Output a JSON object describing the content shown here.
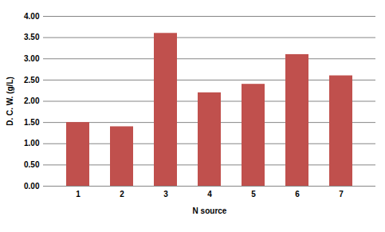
{
  "chart_data": {
    "type": "bar",
    "x_label": "N source",
    "y_label": "D. C. W. (g/L)",
    "categories": [
      "1",
      "2",
      "3",
      "4",
      "5",
      "6",
      "7"
    ],
    "values": [
      1.5,
      1.4,
      3.6,
      2.2,
      2.4,
      3.1,
      2.6
    ],
    "color": "#c0504d",
    "ylim": [
      0,
      4
    ],
    "yticks": [
      {
        "value": 0,
        "label": "0.00"
      },
      {
        "value": 0.5,
        "label": "0.50"
      },
      {
        "value": 1,
        "label": "1.00"
      },
      {
        "value": 1.5,
        "label": "1.50"
      },
      {
        "value": 2,
        "label": "2.00"
      },
      {
        "value": 2.5,
        "label": "2.50"
      },
      {
        "value": 3,
        "label": "3.00"
      },
      {
        "value": 3.5,
        "label": "3.50"
      },
      {
        "value": 4,
        "label": "4.00"
      }
    ],
    "grid": true
  }
}
